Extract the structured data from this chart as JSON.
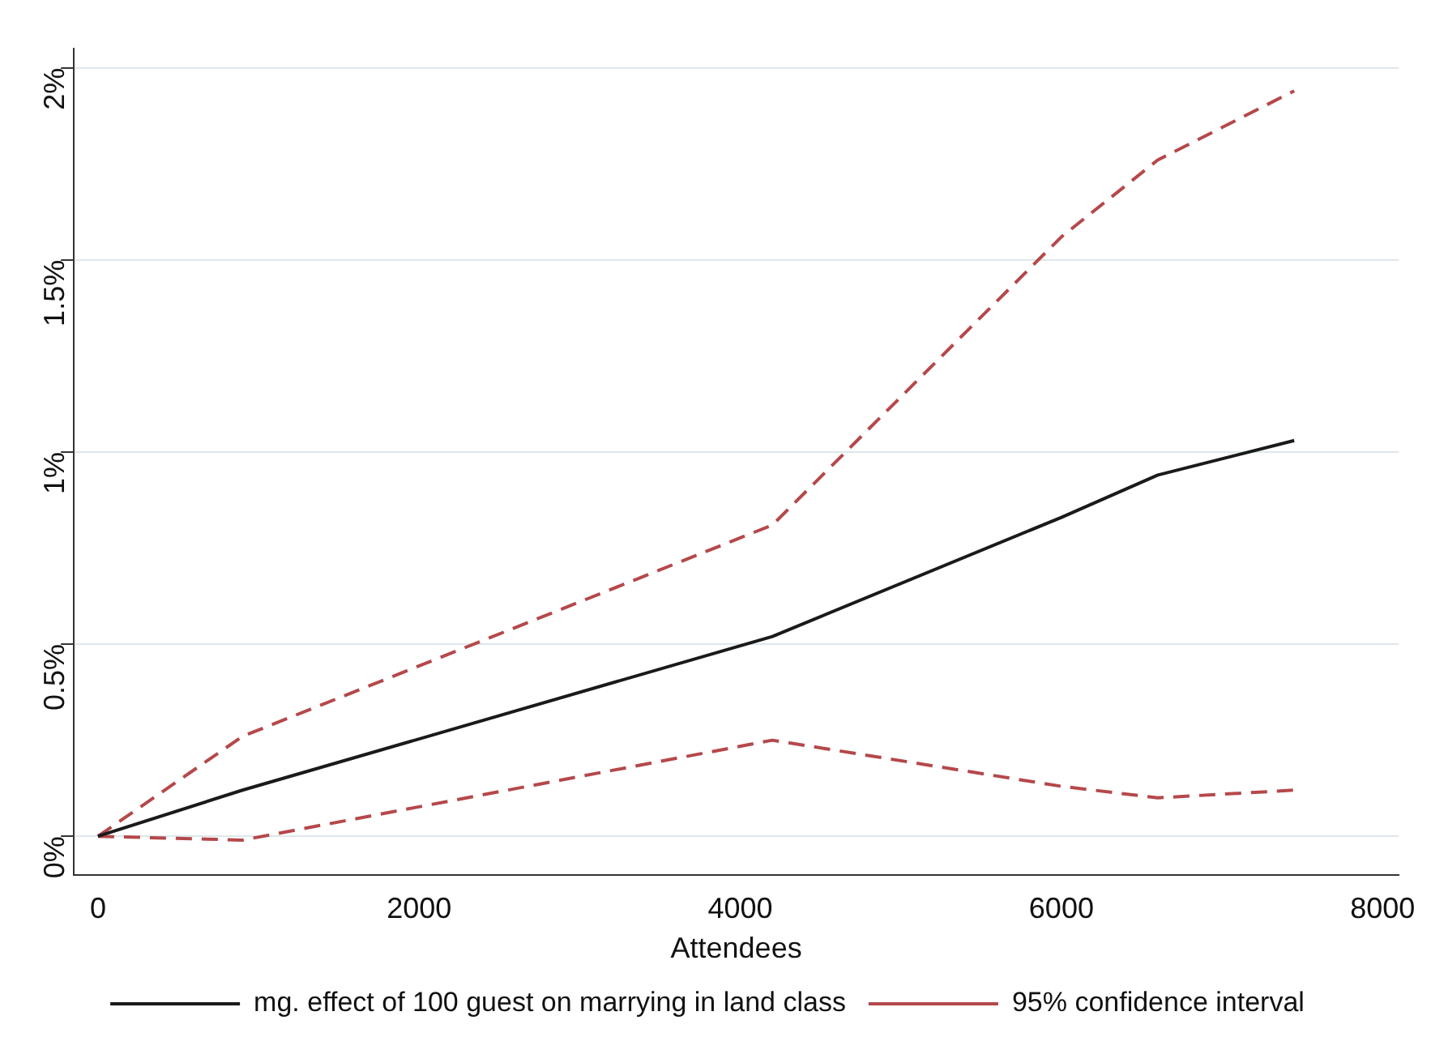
{
  "chart_data": {
    "type": "line",
    "xlabel": "Attendees",
    "x": [
      0,
      900,
      4200,
      6000,
      6600,
      7450
    ],
    "series": [
      {
        "name": "mg. effect of 100 guest on marrying in land class",
        "color": "#1a1a1a",
        "line_style": "solid",
        "values": [
          0,
          0.12,
          0.52,
          0.83,
          0.94,
          1.03
        ]
      },
      {
        "name": "95% confidence interval",
        "color": "#b5484b",
        "line_style": "dashed",
        "values": [
          0,
          0.26,
          0.81,
          1.56,
          1.76,
          1.94
        ]
      },
      {
        "color": "#b5484b",
        "line_style": "dashed",
        "values": [
          0,
          -0.01,
          0.25,
          0.13,
          0.1,
          0.12
        ]
      }
    ],
    "xlim": [
      -150,
      8100
    ],
    "xticks": [
      0,
      2000,
      4000,
      6000,
      8000
    ],
    "ylim": [
      -0.1,
      2.05
    ],
    "yticks": [
      {
        "value": 0,
        "label": "0%"
      },
      {
        "value": 0.5,
        "label": "0.5%"
      },
      {
        "value": 1,
        "label": "1%"
      },
      {
        "value": 1.5,
        "label": "1.5%"
      },
      {
        "value": 2,
        "label": "2%"
      }
    ],
    "grid": "y",
    "legend": "bottom",
    "marker": "none"
  }
}
